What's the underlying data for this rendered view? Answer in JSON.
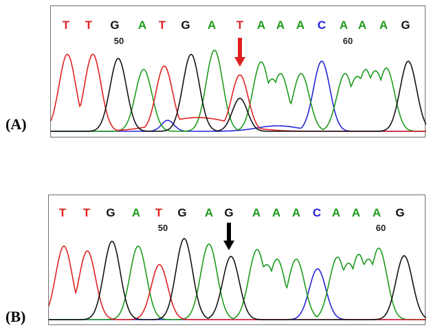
{
  "colors": {
    "A": "#1b9a1b",
    "C": "#2323d8",
    "G": "#111111",
    "T": "#e02020",
    "arrow_a": "#e02020",
    "arrow_b": "#000000"
  },
  "panels": [
    {
      "label": "(A)",
      "bases": [
        "T",
        "T",
        "G",
        "A",
        "T",
        "G",
        "A",
        "T",
        "A",
        "A",
        "A",
        "C",
        "A",
        "A",
        "A",
        "G"
      ],
      "position_labels": [
        {
          "text": "50",
          "base_index": 2
        },
        {
          "text": "60",
          "base_index": 12
        }
      ],
      "arrow_base_index": 7
    },
    {
      "label": "(B)",
      "bases": [
        "T",
        "T",
        "G",
        "A",
        "T",
        "G",
        "A",
        "G",
        "A",
        "A",
        "A",
        "C",
        "A",
        "A",
        "A",
        "G"
      ],
      "position_labels": [
        {
          "text": "50",
          "base_index": 4
        },
        {
          "text": "60",
          "base_index": 14
        }
      ],
      "arrow_base_index": 7
    }
  ]
}
